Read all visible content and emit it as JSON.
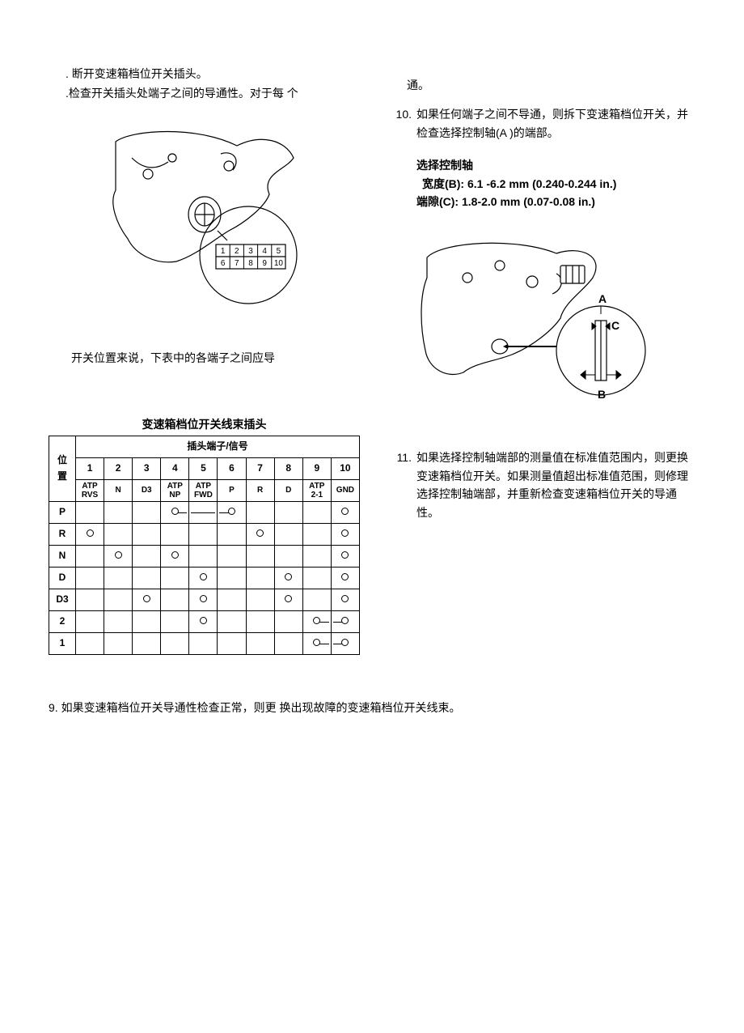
{
  "leftCol": {
    "p1": ". 断开变速箱档位开关插头。",
    "p2": ".检查开关插头处端子之间的导通性。对于每  个",
    "caption": "开关位置来说，下表中的各端子之间应导",
    "tableTitle": "变速箱档位开关线束插头",
    "table": {
      "headerTop": "插头端子/信号",
      "rowLabel": "位置",
      "cols": [
        "1",
        "2",
        "3",
        "4",
        "5",
        "6",
        "7",
        "8",
        "9",
        "10"
      ],
      "signals": [
        "ATP\nRVS",
        "N",
        "D3",
        "ATP\nNP",
        "ATP\nFWD",
        "P",
        "R",
        "D",
        "ATP\n2-1",
        "GND"
      ],
      "positions": [
        "P",
        "R",
        "N",
        "D",
        "D3",
        "2",
        "1"
      ],
      "connections": {
        "P": [
          [
            4,
            6
          ],
          [
            10,
            10
          ]
        ],
        "R": [
          [
            1,
            1
          ],
          [
            7,
            7
          ],
          [
            10,
            10
          ]
        ],
        "N": [
          [
            2,
            2
          ],
          [
            4,
            4
          ],
          [
            10,
            10
          ]
        ],
        "D": [
          [
            5,
            5
          ],
          [
            8,
            8
          ],
          [
            10,
            10
          ]
        ],
        "D3": [
          [
            3,
            3
          ],
          [
            5,
            5
          ],
          [
            8,
            8
          ],
          [
            10,
            10
          ]
        ],
        "2": [
          [
            5,
            5
          ],
          [
            9,
            10
          ]
        ],
        "1": [
          [
            9,
            10
          ]
        ]
      }
    }
  },
  "rightCol": {
    "contLine": "通。",
    "step10": "如果任何端子之间不导通，则拆下变速箱档位开关，并检查选择控制轴(A )的端部。",
    "spec": {
      "title": "选择控制轴",
      "widthLabel": "宽度(B): 6.1 -6.2 mm (0.240-0.244 in.)",
      "gapLabel": "端隙(C): 1.8-2.0 mm (0.07-0.08 in.)"
    },
    "step11": "如果选择控制轴端部的测量值在标准值范围内，则更换变速箱档位开关。如果测量值超出标准值范围，则修理选择控制轴端部，并重新检查变速箱档位开关的导通性。"
  },
  "step9": "9. 如果变速箱档位开关导通性检查正常，则更  换出现故障的变速箱档位开关线束。",
  "figures": {
    "fig1": {
      "connNums": [
        "1",
        "2",
        "3",
        "4",
        "5",
        "6",
        "7",
        "8",
        "9",
        "10"
      ]
    },
    "fig2": {
      "labels": {
        "A": "A",
        "B": "B",
        "C": "C"
      }
    }
  }
}
